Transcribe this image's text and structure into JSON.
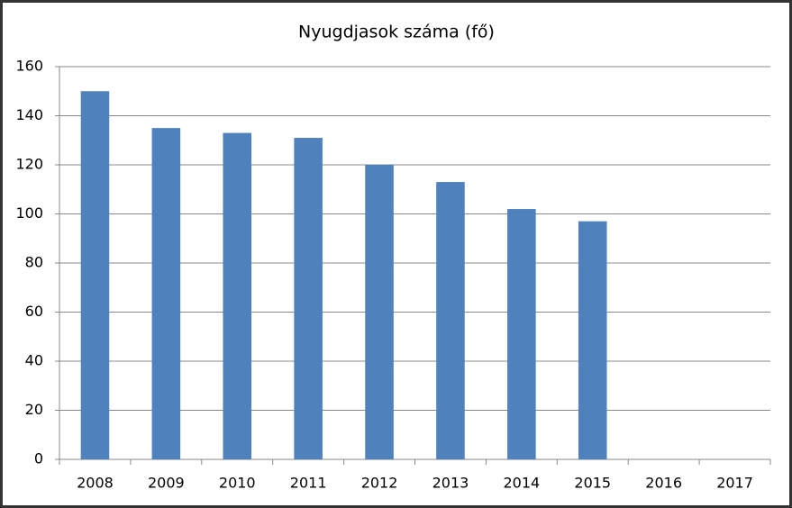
{
  "chart_data": {
    "type": "bar",
    "title": "Nyugdjasok száma (fő)",
    "categories": [
      "2008",
      "2009",
      "2010",
      "2011",
      "2012",
      "2013",
      "2014",
      "2015",
      "2016",
      "2017"
    ],
    "values": [
      150,
      135,
      133,
      131,
      120,
      113,
      102,
      97,
      null,
      null
    ],
    "color": "#4f81bd",
    "ylim": [
      0,
      160
    ],
    "yticks": [
      0,
      20,
      40,
      60,
      80,
      100,
      120,
      140,
      160
    ],
    "grid": true
  }
}
